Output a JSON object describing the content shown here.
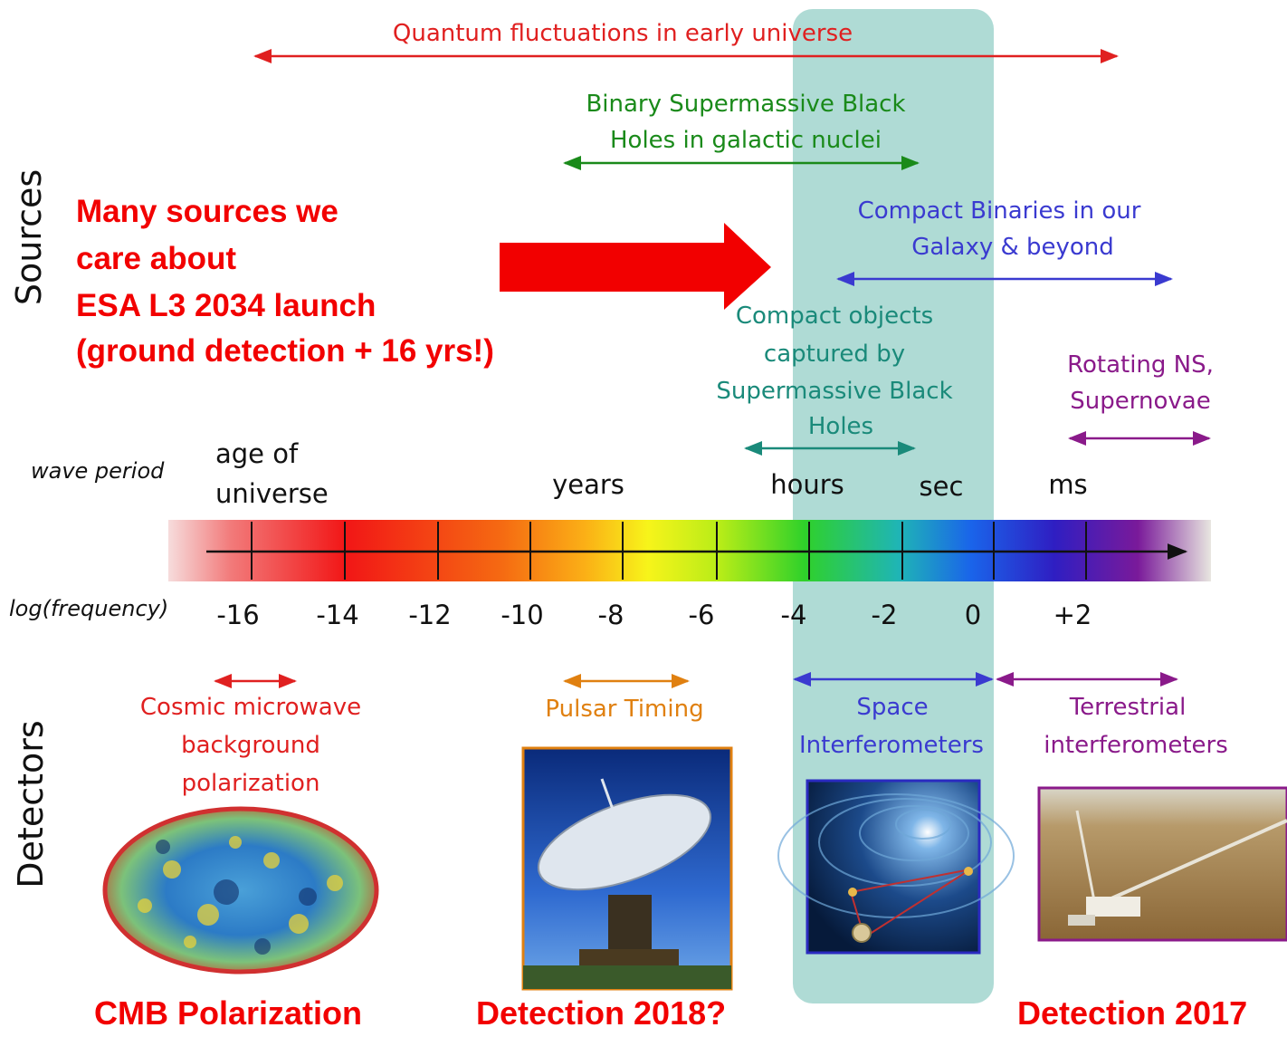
{
  "side_labels": {
    "sources": "Sources",
    "detectors": "Detectors"
  },
  "sources": {
    "quantum": "Quantum fluctuations in early universe",
    "smbh_line1": "Binary Supermassive Black",
    "smbh_line2": "Holes in galactic nuclei",
    "compact_line1": "Compact Binaries in our",
    "compact_line2": "Galaxy & beyond",
    "emri_line1": "Compact objects",
    "emri_line2": "captured by",
    "emri_line3": "Supermassive Black",
    "emri_line4": "Holes",
    "ns_line1": "Rotating NS,",
    "ns_line2": "Supernovae"
  },
  "annotation": {
    "line1": "Many sources we",
    "line2": "care about",
    "line3": "ESA L3 2034 launch",
    "line4": "(ground detection + 16 yrs!)"
  },
  "period_axis": {
    "label": "wave period",
    "age_line1": "age of",
    "age_line2": "universe",
    "years": "years",
    "hours": "hours",
    "sec": "sec",
    "ms": "ms"
  },
  "frequency_axis": {
    "label": "log(frequency)",
    "ticks": [
      "-16",
      "-14",
      "-12",
      "-10",
      "-8",
      "-6",
      "-4",
      "-2",
      "0",
      "+2"
    ]
  },
  "detectors": {
    "cmb_line1": "Cosmic microwave",
    "cmb_line2": "background",
    "cmb_line3": "polarization",
    "pulsar": "Pulsar Timing",
    "space_line1": "Space",
    "space_line2": "Interferometers",
    "terr_line1": "Terrestrial",
    "terr_line2": "interferometers"
  },
  "footer": {
    "cmb": "CMB Polarization",
    "pulsar": "Detection 2018?",
    "terrestrial": "Detection 2017"
  },
  "colors": {
    "red": "#e02020",
    "green": "#1a8a1a",
    "blue": "#3a3ad0",
    "teal": "#1a8a7a",
    "purple": "#8a1a8a",
    "orange": "#e08010",
    "highlight": "#a8d8d0",
    "annotation": "#f20000"
  }
}
